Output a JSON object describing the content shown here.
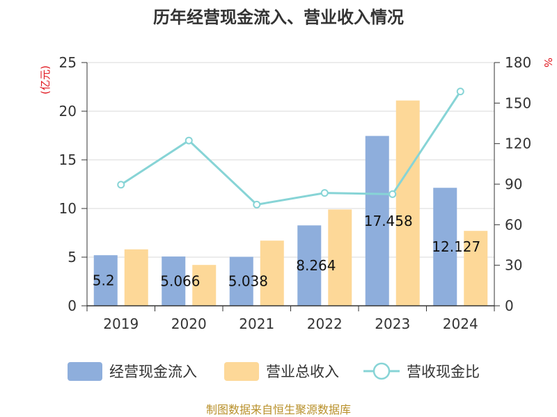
{
  "chart_data": {
    "type": "bar",
    "title": "历年经营现金流入、营业收入情况",
    "categories": [
      "2019",
      "2020",
      "2021",
      "2022",
      "2023",
      "2024"
    ],
    "series": [
      {
        "name": "经营现金流入",
        "kind": "bar",
        "axis": "left",
        "color": "#8eaedc",
        "values": [
          5.2,
          5.066,
          5.038,
          8.264,
          17.458,
          12.127
        ],
        "labels": [
          "5.2",
          "5.066",
          "5.038",
          "8.264",
          "17.458",
          "12.127"
        ]
      },
      {
        "name": "营业总收入",
        "kind": "bar",
        "axis": "left",
        "color": "#fdd898",
        "values": [
          5.8,
          4.2,
          6.7,
          9.9,
          21.1,
          7.7
        ]
      },
      {
        "name": "营收现金比",
        "kind": "line",
        "axis": "right",
        "color": "#87d4d6",
        "values": [
          89.6,
          122.3,
          74.9,
          83.5,
          82.6,
          158.6
        ]
      }
    ],
    "y_left": {
      "unit": "(亿元)",
      "min": 0,
      "max": 25,
      "ticks": [
        0,
        5,
        10,
        15,
        20,
        25
      ]
    },
    "y_right": {
      "unit": "%",
      "min": 0,
      "max": 180,
      "ticks": [
        0,
        30,
        60,
        90,
        120,
        150,
        180
      ]
    },
    "grid": true,
    "legend_position": "bottom"
  },
  "source": "制图数据来自恒生聚源数据库"
}
